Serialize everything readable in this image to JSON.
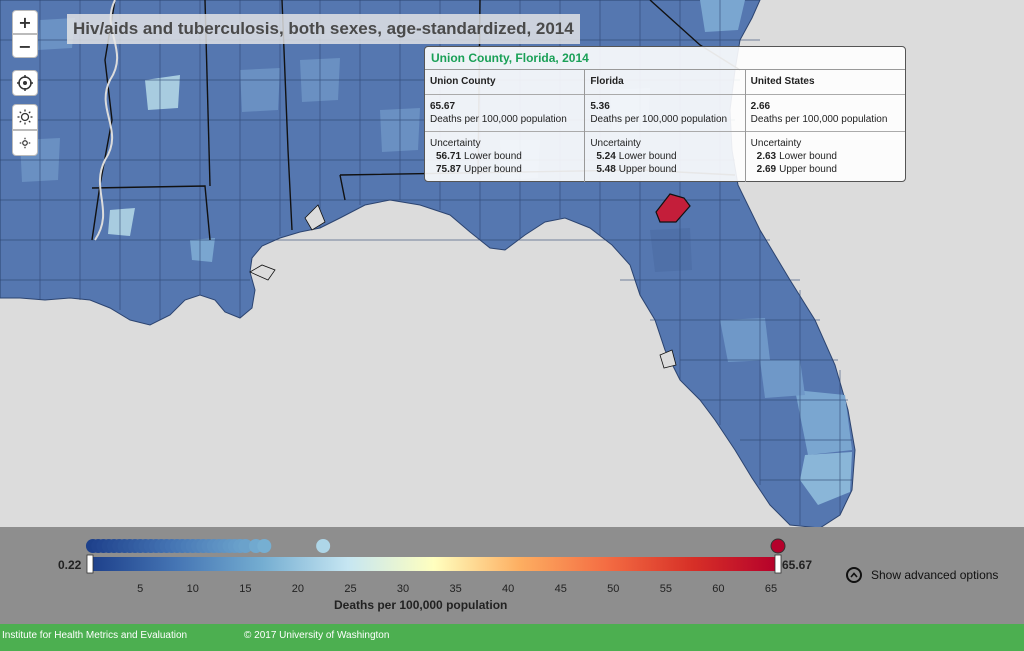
{
  "title": "Hiv/aids and tuberculosis, both sexes, age-standardized, 2014",
  "controls": {
    "zoom_in": "+",
    "zoom_out": "−",
    "locate_icon": "crosshair-icon",
    "brightness_up_icon": "sun-large-icon",
    "brightness_down_icon": "sun-small-icon"
  },
  "map_colors": {
    "water": "#dcdcdc",
    "county_base": "#5577b0",
    "county_light": "#7aa6d0",
    "county_pale": "#a8cce0",
    "highlight": "#c41e3a",
    "state_border": "#111111",
    "county_border": "#2c4470"
  },
  "tooltip": {
    "header": "Union County, Florida, 2014",
    "columns": [
      {
        "name": "Union County",
        "value": "65.67",
        "unit": "Deaths per 100,000 population",
        "uncertainty_label": "Uncertainty",
        "lower": "56.71",
        "lower_label": "Lower bound",
        "upper": "75.87",
        "upper_label": "Upper bound"
      },
      {
        "name": "Florida",
        "value": "5.36",
        "unit": "Deaths per 100,000 population",
        "uncertainty_label": "Uncertainty",
        "lower": "5.24",
        "lower_label": "Lower bound",
        "upper": "5.48",
        "upper_label": "Upper bound"
      },
      {
        "name": "United States",
        "value": "2.66",
        "unit": "Deaths per 100,000 population",
        "uncertainty_label": "Uncertainty",
        "lower": "2.63",
        "lower_label": "Lower bound",
        "upper": "2.69",
        "upper_label": "Upper bound"
      }
    ]
  },
  "legend": {
    "min_label": "0.22",
    "max_label": "65.67",
    "min": 0.22,
    "max": 65.67,
    "ticks": [
      "5",
      "10",
      "15",
      "20",
      "25",
      "30",
      "35",
      "40",
      "45",
      "50",
      "55",
      "60",
      "65"
    ],
    "tick_values": [
      5,
      10,
      15,
      20,
      25,
      30,
      35,
      40,
      45,
      50,
      55,
      60,
      65
    ],
    "units_label": "Deaths per 100,000 population",
    "gradient_stops": [
      "#1d3f8a",
      "#4575b4",
      "#74add1",
      "#c6e6f2",
      "#ffffbf",
      "#fdae61",
      "#f46d43",
      "#d73027",
      "#b5002b"
    ],
    "dot_values": [
      0.5,
      1.0,
      1.5,
      2.0,
      2.5,
      3.0,
      3.5,
      4.0,
      4.5,
      5.0,
      5.5,
      6.0,
      6.5,
      7.0,
      7.5,
      8.0,
      8.5,
      9.0,
      9.5,
      10.0,
      10.5,
      11.0,
      11.5,
      12.0,
      12.5,
      13.0,
      13.5,
      14.0,
      14.5,
      15.0,
      16.0,
      16.8,
      22.4,
      65.67
    ],
    "advanced_label": "Show advanced options",
    "advanced_icon": "chevron-up-circle-icon"
  },
  "footer": {
    "institute": "Institute for Health Metrics and Evaluation",
    "copyright": "© 2017 University of Washington"
  }
}
